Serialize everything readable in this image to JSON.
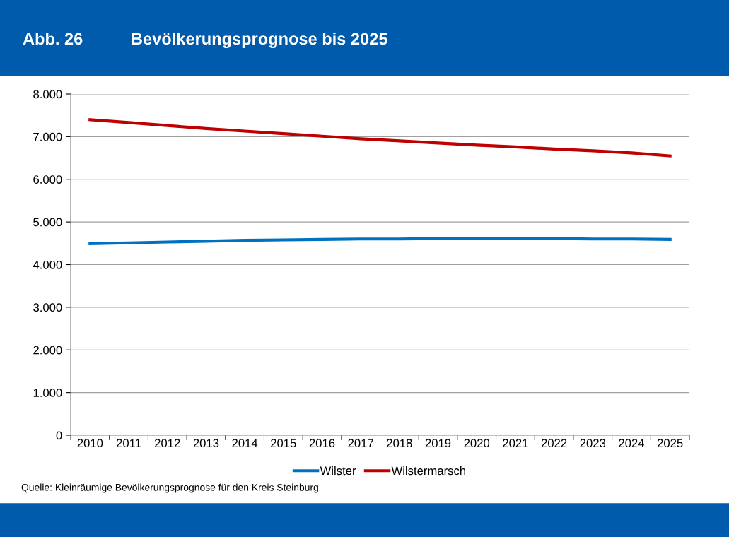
{
  "chart_data": {
    "type": "line",
    "title": "Bevölkerungsprognose bis 2025",
    "annotations": [
      "Abb. 26",
      "Quelle: Kleinräumige Bevölkerungsprognose für den Kreis Steinburg"
    ],
    "categories": [
      "2010",
      "2011",
      "2012",
      "2013",
      "2014",
      "2015",
      "2016",
      "2017",
      "2018",
      "2019",
      "2020",
      "2021",
      "2022",
      "2023",
      "2024",
      "2025"
    ],
    "series": [
      {
        "name": "Wilster",
        "color": "#0070c0",
        "values": [
          4490,
          4510,
          4530,
          4550,
          4570,
          4580,
          4590,
          4600,
          4600,
          4610,
          4620,
          4620,
          4610,
          4600,
          4600,
          4590
        ]
      },
      {
        "name": "Wilstermarsch",
        "color": "#c00000",
        "values": [
          7400,
          7330,
          7260,
          7190,
          7130,
          7070,
          7010,
          6950,
          6900,
          6850,
          6800,
          6760,
          6710,
          6670,
          6620,
          6550
        ]
      }
    ],
    "ylim": [
      0,
      8000
    ],
    "yticks": [
      {
        "value": 0,
        "label": "0"
      },
      {
        "value": 1000,
        "label": "1.000"
      },
      {
        "value": 2000,
        "label": "2.000"
      },
      {
        "value": 3000,
        "label": "3.000"
      },
      {
        "value": 4000,
        "label": "4.000"
      },
      {
        "value": 5000,
        "label": "5.000"
      },
      {
        "value": 6000,
        "label": "6.000"
      },
      {
        "value": 7000,
        "label": "7.000"
      },
      {
        "value": 8000,
        "label": "8.000"
      }
    ],
    "grid": "y",
    "legend": "bottom",
    "marker": "none",
    "line_style": "solid"
  }
}
